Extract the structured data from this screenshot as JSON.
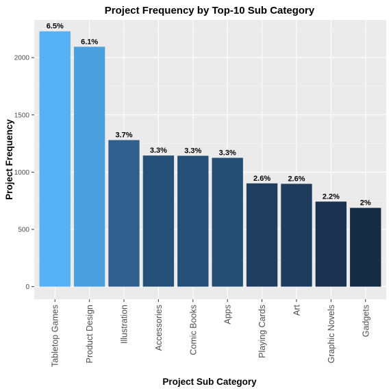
{
  "chart_data": {
    "type": "bar",
    "title": "Project Frequency by Top-10 Sub Category",
    "xlabel": "Project Sub Category",
    "ylabel": "Project Frequency",
    "categories": [
      "Tabletop Games",
      "Product Design",
      "Illustration",
      "Accessories",
      "Comic Books",
      "Apps",
      "Playing Cards",
      "Art",
      "Graphic Novels",
      "Gadgets"
    ],
    "values": [
      2230,
      2095,
      1280,
      1145,
      1143,
      1125,
      902,
      898,
      743,
      688
    ],
    "labels": [
      "6.5%",
      "6.1%",
      "3.7%",
      "3.3%",
      "3.3%",
      "3.3%",
      "2.6%",
      "2.6%",
      "2.2%",
      "2%"
    ],
    "colors": [
      "#56b1f7",
      "#4da0de",
      "#2f5f8c",
      "#275078",
      "#264f77",
      "#264d74",
      "#1f3d5e",
      "#1f3c5d",
      "#1b3350",
      "#162c45"
    ],
    "yticks": [
      0,
      500,
      1000,
      1500,
      2000
    ],
    "ylim": [
      -110,
      2330
    ],
    "grid": true,
    "legend": "none"
  }
}
